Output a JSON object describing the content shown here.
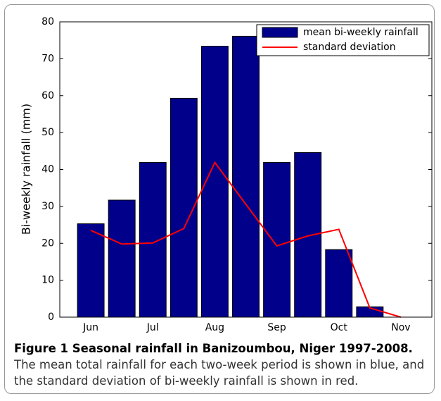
{
  "chart_data": {
    "type": "bar",
    "ylabel": "Bi-weekly rainfall (mm)",
    "categories": [
      "Jun",
      null,
      "Jul",
      null,
      "Aug",
      null,
      "Sep",
      null,
      "Oct",
      null,
      "Nov"
    ],
    "series": [
      {
        "name": "mean bi-weekly rainfall",
        "type": "bar",
        "color": "#00008b",
        "values": [
          25.3,
          31.7,
          41.9,
          59.3,
          73.4,
          76.1,
          41.9,
          44.6,
          18.3,
          2.8,
          0
        ]
      },
      {
        "name": "standard deviation",
        "type": "line",
        "color": "#ff0000",
        "values": [
          23.5,
          19.8,
          20.1,
          24,
          41.9,
          30.6,
          19.3,
          22,
          23.8,
          2.5,
          0
        ]
      }
    ],
    "ylim": [
      0,
      80
    ],
    "yticks": [
      0,
      10,
      20,
      30,
      40,
      50,
      60,
      70,
      80
    ],
    "legend": "upper right"
  },
  "caption": {
    "title": "Figure 1 Seasonal rainfall in Banizoumbou, Niger 1997-2008.",
    "text": "The mean total rainfall for each two-week period is shown in blue, and the standard deviation of bi-weekly rainfall is shown in red."
  }
}
